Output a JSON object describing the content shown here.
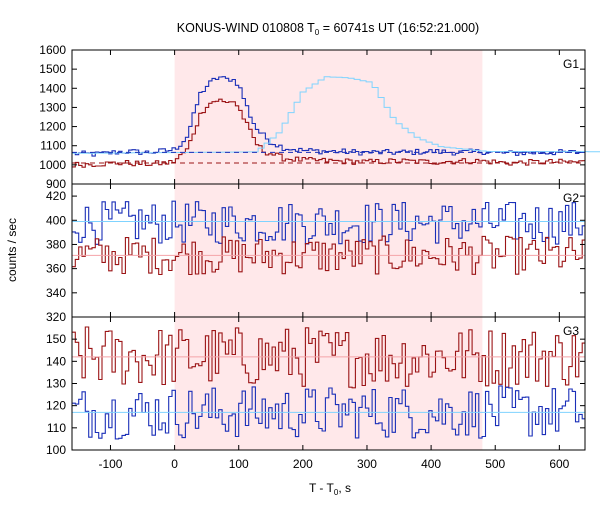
{
  "chart_data": {
    "type": "line",
    "title": "KONUS-WIND 010808 T₀ = 60741s UT (16:52:21.000)",
    "title_parts": {
      "prefix": "KONUS-WIND 010808 T",
      "sub": "0",
      "suffix": " = 60741s UT (16:52:21.000)"
    },
    "xlabel_parts": {
      "prefix": "T - T",
      "sub": "0",
      "suffix": ", s"
    },
    "ylabel": "counts / sec",
    "xlim": [
      -160,
      640
    ],
    "xticks": [
      -100,
      0,
      100,
      200,
      300,
      400,
      500,
      600
    ],
    "shaded_interval": [
      0,
      480
    ],
    "colors": {
      "shade": "#ffe8ea",
      "blue": "#1a2fb8",
      "red": "#9b1416",
      "fit": "#7fd3ff",
      "fit_red": "#f4a3a8"
    },
    "panels": [
      {
        "label": "G1",
        "ylim": [
          900,
          1600
        ],
        "yticks": [
          900,
          1000,
          1100,
          1200,
          1300,
          1400,
          1500,
          1600
        ],
        "background_levels": [
          {
            "series": "high-channel",
            "value": 1065,
            "style": "dashed"
          },
          {
            "series": "low-channel",
            "value": 1010,
            "style": "dashed"
          }
        ],
        "series": [
          {
            "color_key": "blue",
            "points": [
              [
                -160,
                1060
              ],
              [
                -120,
                1055
              ],
              [
                -80,
                1070
              ],
              [
                -40,
                1065
              ],
              [
                -10,
                1075
              ],
              [
                0,
                1080
              ],
              [
                10,
                1110
              ],
              [
                20,
                1150
              ],
              [
                30,
                1260
              ],
              [
                40,
                1370
              ],
              [
                50,
                1410
              ],
              [
                60,
                1440
              ],
              [
                70,
                1460
              ],
              [
                80,
                1445
              ],
              [
                90,
                1450
              ],
              [
                100,
                1420
              ],
              [
                110,
                1330
              ],
              [
                120,
                1240
              ],
              [
                130,
                1180
              ],
              [
                140,
                1150
              ],
              [
                150,
                1120
              ],
              [
                170,
                1090
              ],
              [
                200,
                1075
              ],
              [
                250,
                1070
              ],
              [
                300,
                1065
              ],
              [
                350,
                1065
              ],
              [
                400,
                1070
              ],
              [
                450,
                1065
              ],
              [
                480,
                1070
              ],
              [
                520,
                1060
              ],
              [
                580,
                1065
              ],
              [
                640,
                1065
              ]
            ]
          },
          {
            "color_key": "red",
            "points": [
              [
                -160,
                1000
              ],
              [
                -120,
                1005
              ],
              [
                -80,
                1010
              ],
              [
                -40,
                1005
              ],
              [
                -10,
                1010
              ],
              [
                0,
                1020
              ],
              [
                10,
                1050
              ],
              [
                20,
                1080
              ],
              [
                30,
                1170
              ],
              [
                40,
                1260
              ],
              [
                50,
                1310
              ],
              [
                60,
                1330
              ],
              [
                70,
                1340
              ],
              [
                80,
                1320
              ],
              [
                90,
                1340
              ],
              [
                100,
                1300
              ],
              [
                110,
                1230
              ],
              [
                120,
                1160
              ],
              [
                130,
                1100
              ],
              [
                140,
                1070
              ],
              [
                150,
                1060
              ],
              [
                170,
                1035
              ],
              [
                200,
                1025
              ],
              [
                250,
                1020
              ],
              [
                300,
                1015
              ],
              [
                350,
                1020
              ],
              [
                400,
                1015
              ],
              [
                450,
                1020
              ],
              [
                480,
                1020
              ],
              [
                520,
                1010
              ],
              [
                580,
                1015
              ],
              [
                640,
                1015
              ]
            ]
          },
          {
            "color_key": "fit",
            "points": [
              [
                -160,
                1060
              ],
              [
                0,
                1068
              ],
              [
                20,
                1170
              ],
              [
                40,
                1380
              ],
              [
                60,
                1460
              ],
              [
                80,
                1455
              ],
              [
                100,
                1430
              ],
              [
                120,
                1230
              ],
              [
                140,
                1140
              ],
              [
                160,
                1095
              ],
              [
                200,
                1070
              ],
              [
                640,
                1065
              ]
            ]
          }
        ]
      },
      {
        "label": "G2",
        "ylim": [
          320,
          430
        ],
        "yticks": [
          320,
          340,
          360,
          380,
          400,
          420
        ],
        "fit_levels": [
          {
            "color_key": "fit",
            "value": 399
          },
          {
            "color_key": "fit_red",
            "value": 371
          }
        ],
        "series": [
          {
            "color_key": "blue",
            "mean": 398,
            "amplitude": 18
          },
          {
            "color_key": "red",
            "mean": 371,
            "amplitude": 16
          }
        ]
      },
      {
        "label": "G3",
        "ylim": [
          100,
          160
        ],
        "yticks": [
          100,
          110,
          120,
          130,
          140,
          150
        ],
        "fit_levels": [
          {
            "color_key": "fit_red",
            "value": 142
          },
          {
            "color_key": "fit",
            "value": 117
          }
        ],
        "series": [
          {
            "color_key": "red",
            "mean": 142,
            "amplitude": 14
          },
          {
            "color_key": "blue",
            "mean": 117,
            "amplitude": 12
          }
        ]
      }
    ]
  }
}
